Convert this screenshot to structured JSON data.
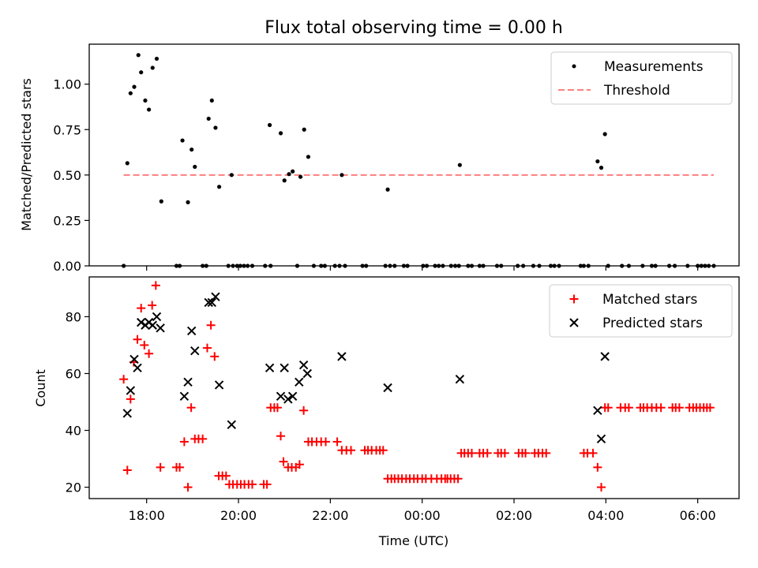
{
  "chart_data": [
    {
      "type": "scatter",
      "title": "Flux total observing time = 0.00 h",
      "ylabel": "Matched/Predicted stars",
      "xlabel": "",
      "ylim": [
        0,
        1.22
      ],
      "xlim": [
        16.75,
        30.9
      ],
      "yticks": [
        0,
        0.25,
        0.5,
        0.75,
        1.0
      ],
      "ytick_labels": [
        "0.00",
        "0.25",
        "0.50",
        "0.75",
        "1.00"
      ],
      "x_tick_values": [
        18,
        20,
        22,
        24,
        26,
        28,
        30
      ],
      "legend": [
        "Measurements",
        "Threshold"
      ],
      "legend_loc": "upper right",
      "threshold": {
        "value": 0.5,
        "x_start": 17.5,
        "x_end": 30.35,
        "color": "#ff7f7f"
      },
      "measurement_color": "#000000",
      "measurements": [
        [
          17.58,
          0.565
        ],
        [
          17.65,
          0.95
        ],
        [
          17.73,
          0.985
        ],
        [
          17.82,
          1.16
        ],
        [
          17.88,
          1.065
        ],
        [
          17.97,
          0.91
        ],
        [
          18.05,
          0.86
        ],
        [
          18.13,
          1.09
        ],
        [
          18.22,
          1.14
        ],
        [
          18.32,
          0.355
        ],
        [
          18.78,
          0.69
        ],
        [
          18.9,
          0.35
        ],
        [
          18.98,
          0.64
        ],
        [
          19.05,
          0.545
        ],
        [
          19.35,
          0.81
        ],
        [
          19.42,
          0.91
        ],
        [
          19.5,
          0.76
        ],
        [
          19.58,
          0.435
        ],
        [
          19.85,
          0.5
        ],
        [
          20.68,
          0.775
        ],
        [
          20.92,
          0.73
        ],
        [
          21.0,
          0.47
        ],
        [
          21.1,
          0.505
        ],
        [
          21.18,
          0.52
        ],
        [
          21.35,
          0.49
        ],
        [
          21.43,
          0.75
        ],
        [
          21.52,
          0.6
        ],
        [
          22.25,
          0.5
        ],
        [
          23.25,
          0.42
        ],
        [
          24.82,
          0.555
        ],
        [
          27.82,
          0.575
        ],
        [
          27.9,
          0.54
        ],
        [
          27.98,
          0.725
        ],
        [
          17.5,
          0
        ],
        [
          18.65,
          0
        ],
        [
          18.72,
          0
        ],
        [
          19.22,
          0
        ],
        [
          19.3,
          0
        ],
        [
          19.78,
          0
        ],
        [
          19.88,
          0
        ],
        [
          19.97,
          0
        ],
        [
          20.04,
          0
        ],
        [
          20.12,
          0
        ],
        [
          20.2,
          0
        ],
        [
          20.3,
          0
        ],
        [
          20.58,
          0
        ],
        [
          20.7,
          0
        ],
        [
          21.28,
          0
        ],
        [
          21.64,
          0
        ],
        [
          21.8,
          0
        ],
        [
          21.88,
          0
        ],
        [
          22.1,
          0
        ],
        [
          22.2,
          0
        ],
        [
          22.32,
          0
        ],
        [
          22.7,
          0
        ],
        [
          22.78,
          0
        ],
        [
          23.2,
          0
        ],
        [
          23.3,
          0
        ],
        [
          23.4,
          0
        ],
        [
          23.6,
          0
        ],
        [
          23.68,
          0
        ],
        [
          24.02,
          0
        ],
        [
          24.1,
          0
        ],
        [
          24.28,
          0
        ],
        [
          24.36,
          0
        ],
        [
          24.45,
          0
        ],
        [
          24.63,
          0
        ],
        [
          24.72,
          0
        ],
        [
          24.8,
          0
        ],
        [
          25.0,
          0
        ],
        [
          25.08,
          0
        ],
        [
          25.25,
          0
        ],
        [
          25.33,
          0
        ],
        [
          25.63,
          0
        ],
        [
          25.72,
          0
        ],
        [
          26.08,
          0
        ],
        [
          26.2,
          0
        ],
        [
          26.42,
          0
        ],
        [
          26.55,
          0
        ],
        [
          26.8,
          0
        ],
        [
          26.88,
          0
        ],
        [
          26.98,
          0
        ],
        [
          27.45,
          0
        ],
        [
          27.52,
          0
        ],
        [
          27.62,
          0
        ],
        [
          28.05,
          0
        ],
        [
          28.35,
          0
        ],
        [
          28.5,
          0
        ],
        [
          28.8,
          0
        ],
        [
          29.0,
          0
        ],
        [
          29.08,
          0
        ],
        [
          29.38,
          0
        ],
        [
          29.5,
          0
        ],
        [
          29.78,
          0
        ],
        [
          30.0,
          0
        ],
        [
          30.08,
          0
        ],
        [
          30.16,
          0
        ],
        [
          30.24,
          0
        ],
        [
          30.35,
          0
        ]
      ]
    },
    {
      "type": "scatter",
      "title": "",
      "ylabel": "Count",
      "xlabel": "Time (UTC)",
      "ylim": [
        16,
        94
      ],
      "xlim": [
        16.75,
        30.9
      ],
      "yticks": [
        20,
        40,
        60,
        80
      ],
      "ytick_labels": [
        "20",
        "40",
        "60",
        "80"
      ],
      "x_tick_values": [
        18,
        20,
        22,
        24,
        26,
        28,
        30
      ],
      "xtick_labels": [
        "18:00",
        "20:00",
        "22:00",
        "00:00",
        "02:00",
        "04:00",
        "06:00"
      ],
      "legend": [
        "Matched stars",
        "Predicted stars"
      ],
      "legend_loc": "upper right",
      "matched_color": "#ff0000",
      "predicted_color": "#000000",
      "matched": [
        [
          17.5,
          58
        ],
        [
          17.58,
          26
        ],
        [
          17.65,
          51
        ],
        [
          17.72,
          64
        ],
        [
          17.8,
          72
        ],
        [
          17.88,
          83
        ],
        [
          17.95,
          70
        ],
        [
          18.05,
          67
        ],
        [
          18.12,
          84
        ],
        [
          18.2,
          91
        ],
        [
          18.3,
          27
        ],
        [
          18.65,
          27
        ],
        [
          18.72,
          27
        ],
        [
          18.82,
          36
        ],
        [
          18.9,
          20
        ],
        [
          18.97,
          48
        ],
        [
          19.05,
          37
        ],
        [
          19.13,
          37
        ],
        [
          19.22,
          37
        ],
        [
          19.32,
          69
        ],
        [
          19.4,
          77
        ],
        [
          19.48,
          66
        ],
        [
          19.57,
          24
        ],
        [
          19.65,
          24
        ],
        [
          19.73,
          24
        ],
        [
          19.8,
          21
        ],
        [
          19.88,
          21
        ],
        [
          19.97,
          21
        ],
        [
          20.05,
          21
        ],
        [
          20.13,
          21
        ],
        [
          20.22,
          21
        ],
        [
          20.3,
          21
        ],
        [
          20.55,
          21
        ],
        [
          20.62,
          21
        ],
        [
          20.7,
          48
        ],
        [
          20.78,
          48
        ],
        [
          20.85,
          48
        ],
        [
          20.92,
          38
        ],
        [
          20.98,
          29
        ],
        [
          21.08,
          27
        ],
        [
          21.16,
          27
        ],
        [
          21.25,
          27
        ],
        [
          21.33,
          28
        ],
        [
          21.42,
          47
        ],
        [
          21.52,
          36
        ],
        [
          21.6,
          36
        ],
        [
          21.7,
          36
        ],
        [
          21.8,
          36
        ],
        [
          21.9,
          36
        ],
        [
          22.15,
          36
        ],
        [
          22.25,
          33
        ],
        [
          22.35,
          33
        ],
        [
          22.45,
          33
        ],
        [
          22.75,
          33
        ],
        [
          22.82,
          33
        ],
        [
          22.9,
          33
        ],
        [
          23.0,
          33
        ],
        [
          23.08,
          33
        ],
        [
          23.15,
          33
        ],
        [
          23.25,
          23
        ],
        [
          23.33,
          23
        ],
        [
          23.4,
          23
        ],
        [
          23.48,
          23
        ],
        [
          23.56,
          23
        ],
        [
          23.65,
          23
        ],
        [
          23.73,
          23
        ],
        [
          23.82,
          23
        ],
        [
          23.9,
          23
        ],
        [
          24.0,
          23
        ],
        [
          24.08,
          23
        ],
        [
          24.2,
          23
        ],
        [
          24.32,
          23
        ],
        [
          24.42,
          23
        ],
        [
          24.5,
          23
        ],
        [
          24.55,
          23
        ],
        [
          24.62,
          23
        ],
        [
          24.7,
          23
        ],
        [
          24.78,
          23
        ],
        [
          24.85,
          32
        ],
        [
          24.92,
          32
        ],
        [
          25.0,
          32
        ],
        [
          25.08,
          32
        ],
        [
          25.25,
          32
        ],
        [
          25.33,
          32
        ],
        [
          25.42,
          32
        ],
        [
          25.65,
          32
        ],
        [
          25.72,
          32
        ],
        [
          25.8,
          32
        ],
        [
          26.1,
          32
        ],
        [
          26.18,
          32
        ],
        [
          26.25,
          32
        ],
        [
          26.45,
          32
        ],
        [
          26.53,
          32
        ],
        [
          26.62,
          32
        ],
        [
          26.7,
          32
        ],
        [
          27.52,
          32
        ],
        [
          27.6,
          32
        ],
        [
          27.72,
          32
        ],
        [
          27.82,
          27
        ],
        [
          27.9,
          20
        ],
        [
          27.98,
          48
        ],
        [
          28.05,
          48
        ],
        [
          28.32,
          48
        ],
        [
          28.42,
          48
        ],
        [
          28.5,
          48
        ],
        [
          28.75,
          48
        ],
        [
          28.82,
          48
        ],
        [
          28.9,
          48
        ],
        [
          29.0,
          48
        ],
        [
          29.1,
          48
        ],
        [
          29.2,
          48
        ],
        [
          29.45,
          48
        ],
        [
          29.52,
          48
        ],
        [
          29.6,
          48
        ],
        [
          29.82,
          48
        ],
        [
          29.9,
          48
        ],
        [
          29.97,
          48
        ],
        [
          30.05,
          48
        ],
        [
          30.13,
          48
        ],
        [
          30.2,
          48
        ],
        [
          30.27,
          48
        ]
      ],
      "predicted": [
        [
          17.58,
          46
        ],
        [
          17.65,
          54
        ],
        [
          17.73,
          65
        ],
        [
          17.8,
          62
        ],
        [
          17.88,
          78
        ],
        [
          17.97,
          77
        ],
        [
          18.05,
          78
        ],
        [
          18.13,
          77
        ],
        [
          18.22,
          80
        ],
        [
          18.3,
          76
        ],
        [
          18.82,
          52
        ],
        [
          18.9,
          57
        ],
        [
          18.98,
          75
        ],
        [
          19.05,
          68
        ],
        [
          19.35,
          85
        ],
        [
          19.42,
          85
        ],
        [
          19.5,
          87
        ],
        [
          19.58,
          56
        ],
        [
          19.85,
          42
        ],
        [
          20.68,
          62
        ],
        [
          20.92,
          52
        ],
        [
          21.0,
          62
        ],
        [
          21.08,
          51
        ],
        [
          21.18,
          52
        ],
        [
          21.32,
          57
        ],
        [
          21.42,
          63
        ],
        [
          21.5,
          60
        ],
        [
          22.25,
          66
        ],
        [
          23.25,
          55
        ],
        [
          24.82,
          58
        ],
        [
          27.82,
          47
        ],
        [
          27.9,
          37
        ],
        [
          27.98,
          66
        ]
      ]
    }
  ]
}
